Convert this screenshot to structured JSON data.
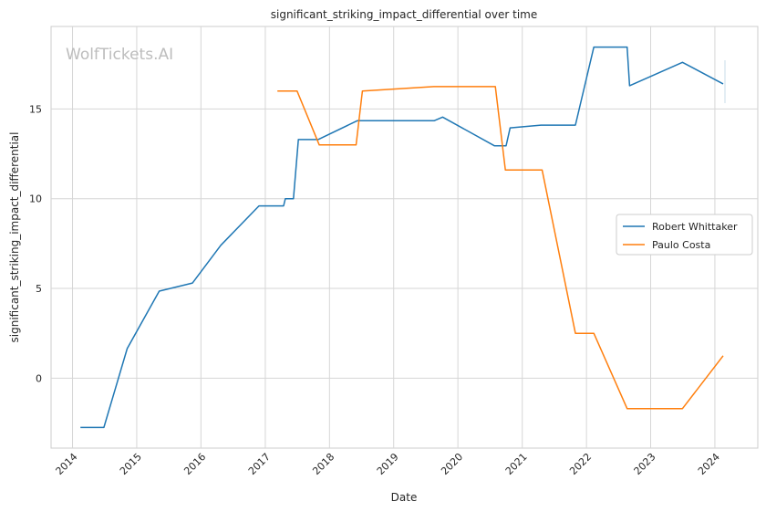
{
  "watermark": "WolfTickets.AI",
  "chart_data": {
    "type": "line",
    "title": "significant_striking_impact_differential over time",
    "xlabel": "Date",
    "ylabel": "significant_striking_impact_differential",
    "x_range": [
      "2013-09-01",
      "2024-09-01"
    ],
    "ylim": [
      -3.9,
      19.6
    ],
    "x_ticks": [
      "2014",
      "2015",
      "2016",
      "2017",
      "2018",
      "2019",
      "2020",
      "2021",
      "2022",
      "2023",
      "2024"
    ],
    "y_ticks": [
      0,
      5,
      10,
      15
    ],
    "grid": true,
    "legend": "center-right",
    "series": [
      {
        "name": "Robert Whittaker",
        "color": "#1f77b4",
        "points": [
          [
            "2014-02-15",
            -2.75
          ],
          [
            "2014-06-28",
            -2.75
          ],
          [
            "2014-11-08",
            1.65
          ],
          [
            "2015-05-09",
            4.85
          ],
          [
            "2015-11-14",
            5.3
          ],
          [
            "2016-04-23",
            7.4
          ],
          [
            "2016-11-26",
            9.6
          ],
          [
            "2017-04-15",
            9.6
          ],
          [
            "2017-04-25",
            10.0
          ],
          [
            "2017-06-10",
            10.0
          ],
          [
            "2017-07-08",
            13.3
          ],
          [
            "2017-10-28",
            13.3
          ],
          [
            "2018-06-09",
            14.35
          ],
          [
            "2019-08-20",
            14.35
          ],
          [
            "2019-10-06",
            14.55
          ],
          [
            "2020-07-26",
            12.95
          ],
          [
            "2020-10-01",
            12.95
          ],
          [
            "2020-10-24",
            13.95
          ],
          [
            "2021-04-17",
            14.1
          ],
          [
            "2021-10-30",
            14.1
          ],
          [
            "2022-02-12",
            18.45
          ],
          [
            "2022-08-20",
            18.45
          ],
          [
            "2022-09-03",
            16.3
          ],
          [
            "2023-07-01",
            17.6
          ],
          [
            "2024-02-17",
            16.4
          ]
        ]
      },
      {
        "name": "Paulo Costa",
        "color": "#ff7f0e",
        "points": [
          [
            "2017-03-11",
            16.0
          ],
          [
            "2017-07-01",
            16.0
          ],
          [
            "2017-11-04",
            13.0
          ],
          [
            "2018-06-01",
            13.0
          ],
          [
            "2018-07-07",
            16.0
          ],
          [
            "2019-08-17",
            16.25
          ],
          [
            "2020-08-01",
            16.25
          ],
          [
            "2020-09-27",
            11.6
          ],
          [
            "2021-04-24",
            11.6
          ],
          [
            "2021-10-30",
            2.5
          ],
          [
            "2022-02-12",
            2.5
          ],
          [
            "2022-08-20",
            -1.7
          ],
          [
            "2023-07-01",
            -1.7
          ],
          [
            "2024-02-17",
            1.25
          ]
        ]
      }
    ]
  }
}
